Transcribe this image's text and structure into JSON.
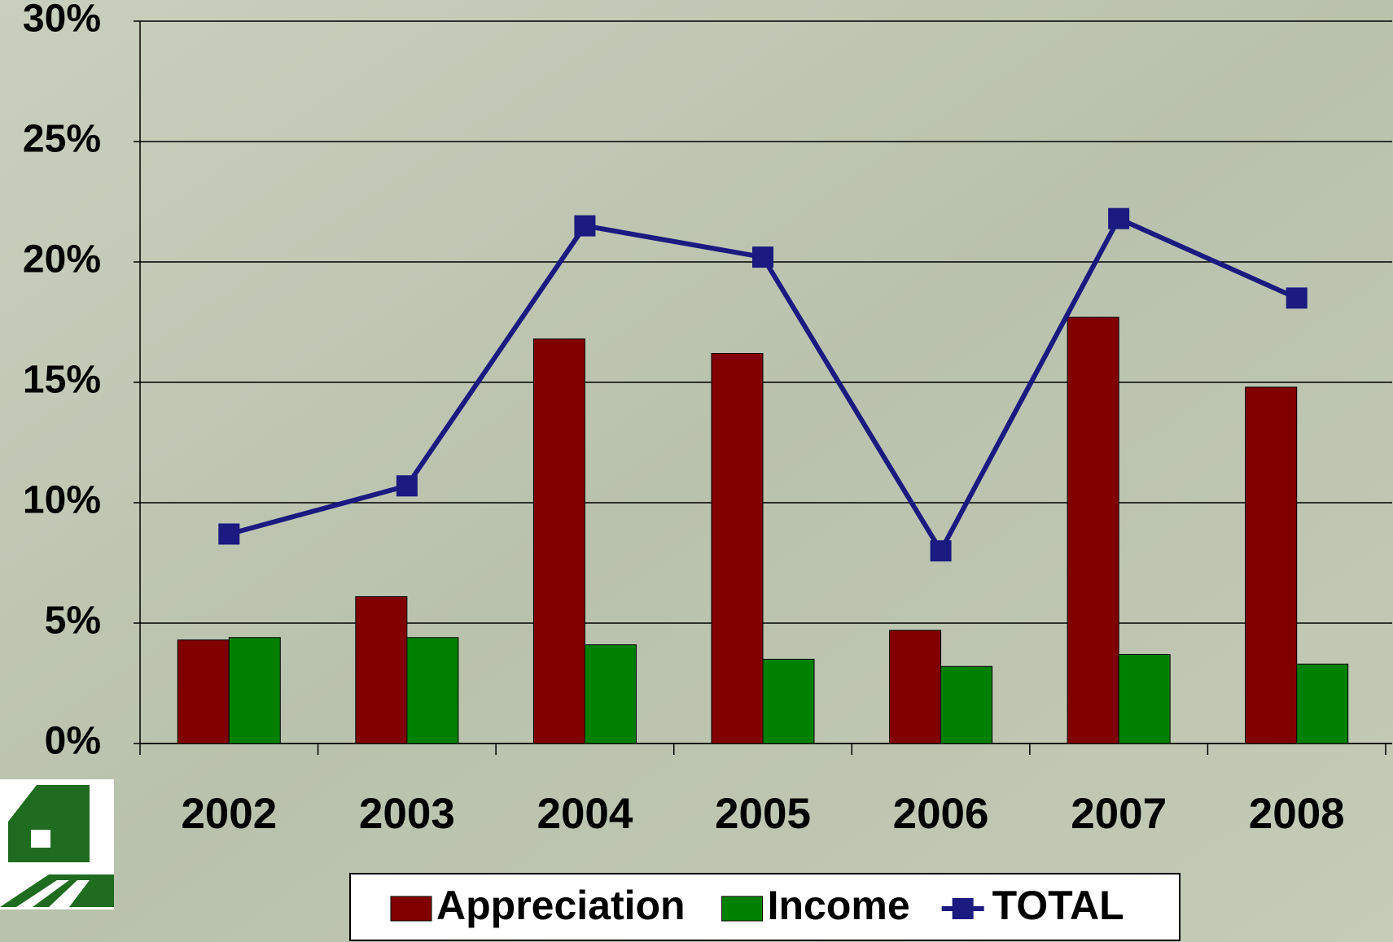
{
  "chart_data": {
    "type": "bar_line",
    "categories": [
      "2002",
      "2003",
      "2004",
      "2005",
      "2006",
      "2007",
      "2008"
    ],
    "series": [
      {
        "name": "Appreciation",
        "type": "bar",
        "color": "#800000",
        "values": [
          4.3,
          6.1,
          16.8,
          16.2,
          4.7,
          17.7,
          14.8
        ]
      },
      {
        "name": "Income",
        "type": "bar",
        "color": "#008000",
        "values": [
          4.4,
          4.4,
          4.1,
          3.5,
          3.2,
          3.7,
          3.3
        ]
      },
      {
        "name": "TOTAL",
        "type": "line",
        "color": "#1a1a80",
        "values": [
          8.7,
          10.7,
          21.5,
          20.2,
          8.0,
          21.8,
          18.5
        ]
      }
    ],
    "ylim": [
      0,
      30
    ],
    "yticks": [
      {
        "value": 0,
        "label": "0%"
      },
      {
        "value": 5,
        "label": "5%"
      },
      {
        "value": 10,
        "label": "10%"
      },
      {
        "value": 15,
        "label": "15%"
      },
      {
        "value": 20,
        "label": "20%"
      },
      {
        "value": 25,
        "label": "25%"
      },
      {
        "value": 30,
        "label": "30%"
      }
    ],
    "grid": true,
    "legend": "bottom"
  }
}
